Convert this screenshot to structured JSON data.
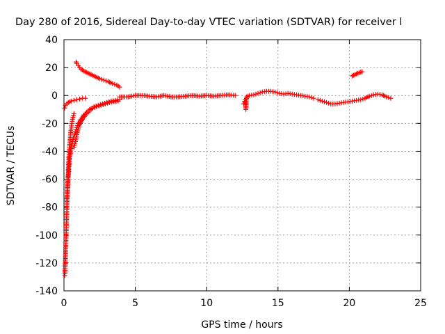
{
  "chart_data": {
    "type": "scatter",
    "title": "Day 280 of 2016, Sidereal Day-to-day VTEC variation (SDTVAR) for receiver l",
    "xlabel": "GPS time / hours",
    "ylabel": "SDTVAR / TECUs",
    "xlim": [
      0,
      25
    ],
    "ylim": [
      -140,
      40
    ],
    "xticks": [
      "0",
      "5",
      "10",
      "15",
      "20",
      "25"
    ],
    "yticks": [
      "40",
      "20",
      "0",
      "-20",
      "-40",
      "-60",
      "-80",
      "-100",
      "-120",
      "-140"
    ],
    "grid": true,
    "marker": "plus",
    "color": "#ff0000",
    "series": [
      {
        "name": "",
        "x": [
          0.06,
          0.08,
          0.1,
          0.12,
          0.14,
          0.16,
          0.18,
          0.2,
          0.22,
          0.25,
          0.28,
          0.3,
          0.33,
          0.36,
          0.4,
          0.45,
          0.5,
          0.55,
          0.6,
          0.7
        ],
        "y": [
          -129,
          -124,
          -118,
          -112,
          -105,
          -98,
          -90,
          -83,
          -76,
          -68,
          -60,
          -54,
          -47,
          -41,
          -35,
          -29,
          -24,
          -20,
          -17,
          -13
        ]
      },
      {
        "name": "",
        "x": [
          0.2,
          0.3,
          0.4,
          0.5,
          0.6,
          0.7,
          0.8,
          0.9,
          1.0,
          1.2,
          1.4,
          1.6,
          1.8,
          2.0,
          2.3,
          2.6,
          2.9,
          3.2,
          3.5,
          3.8
        ],
        "y": [
          -75,
          -58,
          -45,
          -38,
          -33,
          -29,
          -26,
          -23,
          -20,
          -17,
          -14,
          -12,
          -10,
          -9,
          -8,
          -7,
          -6,
          -5,
          -4.5,
          -4
        ]
      },
      {
        "name": "",
        "x": [
          0.7,
          0.8,
          0.9,
          1.0,
          1.1,
          1.3,
          1.5,
          1.7,
          1.9,
          2.1,
          2.4,
          2.7,
          3.0,
          3.3,
          3.6,
          3.9
        ],
        "y": [
          -37,
          -33,
          -28,
          -24,
          -21,
          -17,
          -14,
          -12,
          -10,
          -8,
          -7,
          -6,
          -5,
          -4,
          -3.5,
          -3
        ]
      },
      {
        "name": "",
        "x": [
          0.05,
          0.1,
          0.2,
          0.3,
          0.5,
          0.7,
          0.9,
          1.1,
          1.3,
          1.5
        ],
        "y": [
          -9,
          -7,
          -6,
          -5,
          -4,
          -3.5,
          -3,
          -2.5,
          -2,
          -2
        ]
      },
      {
        "name": "",
        "x": [
          0.85,
          0.9,
          1.0,
          1.1,
          1.2,
          1.4,
          1.6,
          1.8,
          2.0,
          2.2,
          2.5,
          2.8,
          3.1,
          3.4,
          3.7,
          3.9
        ],
        "y": [
          24,
          23,
          21.5,
          20,
          19,
          17.5,
          16.5,
          15.5,
          14.5,
          13.5,
          12,
          11,
          10,
          8.5,
          7.5,
          6
        ]
      },
      {
        "name": "",
        "x": [
          3.9,
          4.5,
          5.0,
          5.5,
          6.0,
          6.5,
          7.0,
          7.5,
          8.0,
          8.5,
          9.0,
          9.5,
          10.0,
          10.5,
          11.0,
          11.5,
          12.0
        ],
        "y": [
          -1,
          -1,
          0,
          0,
          -0.5,
          -1,
          0,
          -1,
          -1,
          -0.5,
          0,
          -0.5,
          0,
          -0.5,
          0,
          0.5,
          0
        ]
      },
      {
        "name": "",
        "x": [
          12.6,
          12.7,
          12.75,
          12.8,
          13.0,
          13.3,
          13.6,
          13.9,
          14.2,
          14.5,
          14.8,
          15.1,
          15.4,
          15.7,
          16.0,
          16.3,
          16.6,
          16.9,
          17.2,
          17.5
        ],
        "y": [
          -6,
          -3,
          -10,
          -1,
          0,
          0.5,
          1.5,
          2.5,
          3,
          3,
          2.5,
          1.5,
          1,
          1.5,
          1,
          0.5,
          0,
          -0.5,
          -1,
          -2
        ]
      },
      {
        "name": "",
        "x": [
          17.8,
          18.1,
          18.4,
          18.7,
          19.0,
          19.3,
          19.6,
          19.9,
          20.2,
          20.5,
          20.8,
          21.1,
          21.4,
          21.7,
          22.0,
          22.3,
          22.6,
          22.9
        ],
        "y": [
          -3,
          -4,
          -5,
          -6,
          -6,
          -5.5,
          -5,
          -4.5,
          -4,
          -3.5,
          -3,
          -2,
          -0.5,
          0.5,
          1,
          0.5,
          -1,
          -2
        ]
      },
      {
        "name": "",
        "x": [
          20.2,
          20.3,
          20.4,
          20.5,
          20.6,
          20.7,
          20.8,
          20.9
        ],
        "y": [
          14,
          14.5,
          15,
          15.5,
          16,
          16.3,
          16.8,
          17
        ]
      }
    ]
  }
}
